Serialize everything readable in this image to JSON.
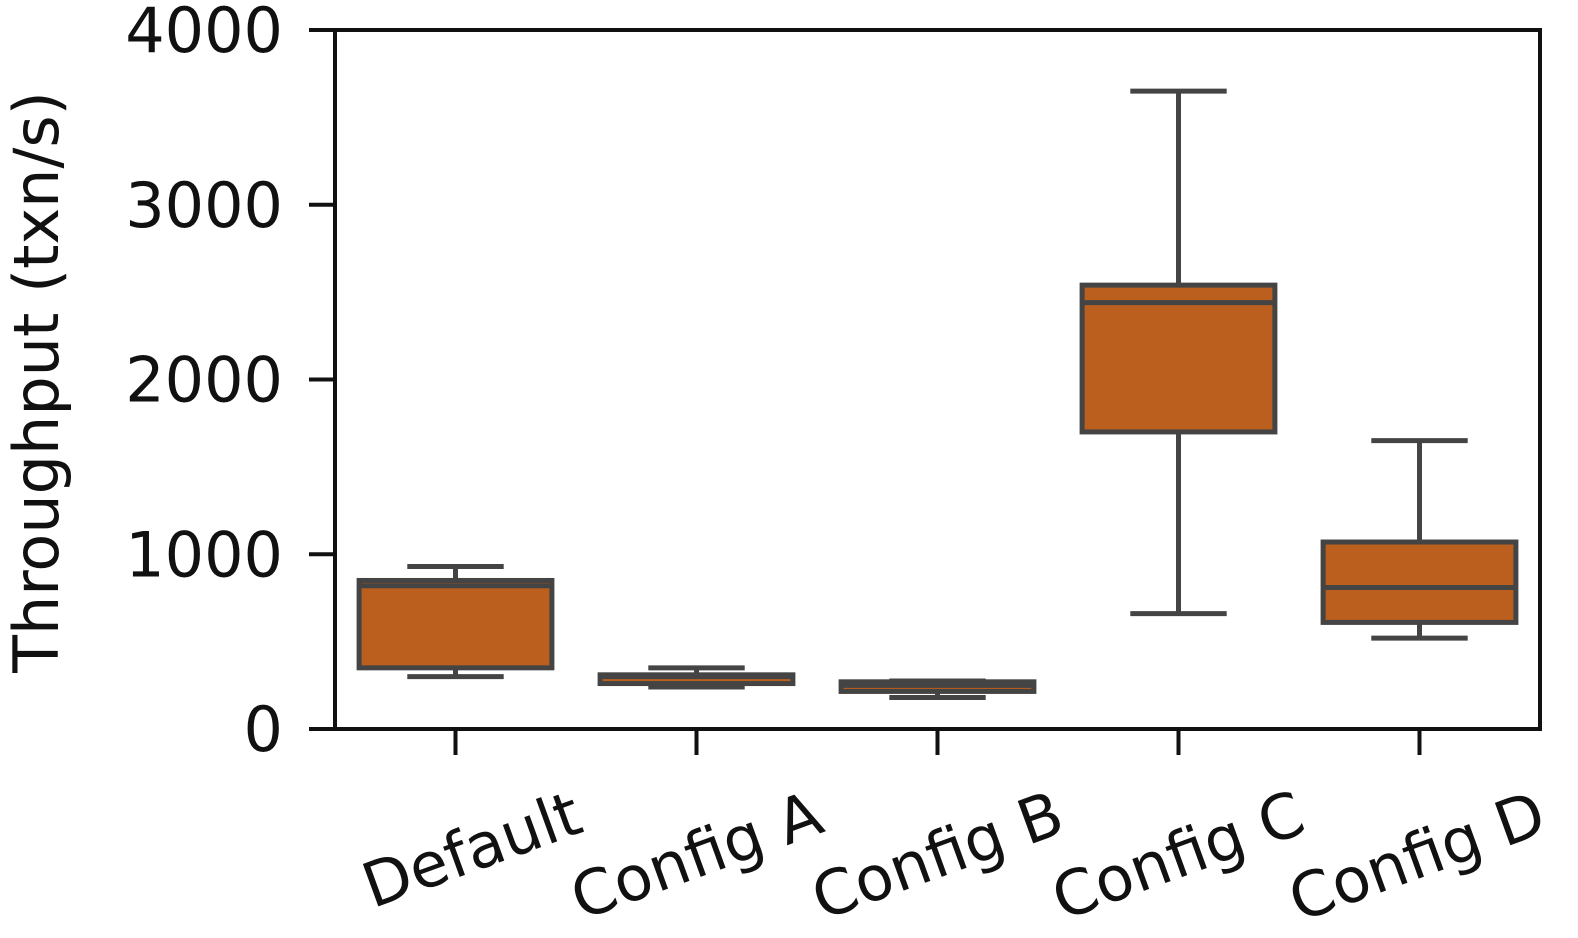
{
  "chart_data": {
    "type": "box",
    "title": "",
    "xlabel": "",
    "ylabel": "Throughput (txn/s)",
    "ylim": [
      0,
      4000
    ],
    "yticks": [
      0,
      1000,
      2000,
      3000,
      4000
    ],
    "ytick_labels": [
      "0",
      "1000",
      "2000",
      "3000",
      "4000"
    ],
    "grid": false,
    "colors": {
      "box_fill": "#BA5F1E",
      "box_edge": "#444444",
      "axis": "#111111"
    },
    "categories": [
      "Default",
      "Config A",
      "Config B",
      "Config C",
      "Config D"
    ],
    "boxes": [
      {
        "label": "Default",
        "whisker_low": 300,
        "q1": 350,
        "median": 820,
        "q3": 850,
        "whisker_high": 930
      },
      {
        "label": "Config A",
        "whisker_low": 240,
        "q1": 260,
        "median": 300,
        "q3": 310,
        "whisker_high": 350
      },
      {
        "label": "Config B",
        "whisker_low": 180,
        "q1": 215,
        "median": 250,
        "q3": 270,
        "whisker_high": 275
      },
      {
        "label": "Config C",
        "whisker_low": 660,
        "q1": 1700,
        "median": 2440,
        "q3": 2540,
        "whisker_high": 3650
      },
      {
        "label": "Config D",
        "whisker_low": 520,
        "q1": 610,
        "median": 810,
        "q3": 1070,
        "whisker_high": 1650
      }
    ]
  }
}
